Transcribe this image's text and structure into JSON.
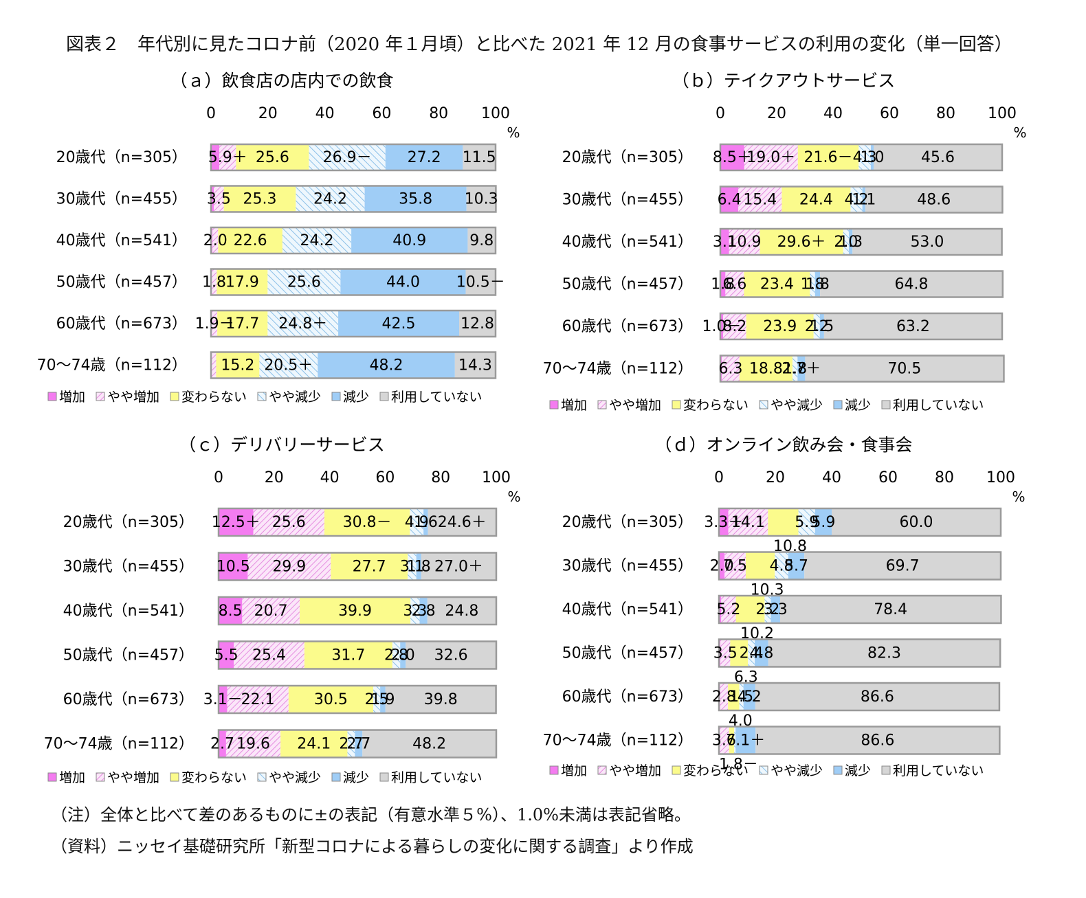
{
  "title": "図表２　年代別に見たコロナ前（2020 年１月頃）と比べた 2021 年 12 月の食事サービスの利用の変化（単一回答）",
  "notes": {
    "note1": "（注）全体と比べて差のあるものに±の表記（有意水準５%）、1.0%未満は表記省略。",
    "note2": "（資料）ニッセイ基礎研究所「新型コロナによる暮らしの変化に関する調査」より作成"
  },
  "colors": {
    "増加": "#f47cf0",
    "やや増加": "#f6c8f2",
    "変わらない": "#fbfb8c",
    "やや減少": "#d8ecfa",
    "減少": "#9fcdf6",
    "利用していない": "#d6d6d6"
  },
  "chart_data": [
    {
      "type": "bar",
      "stacked": true,
      "orientation": "horizontal",
      "title": "（ａ）飲食店の店内での飲食",
      "unit": "%",
      "xlim": [
        0,
        100
      ],
      "ticks": [
        "0",
        "20",
        "40",
        "60",
        "80",
        "100"
      ],
      "categories": [
        "20歳代（n=305）",
        "30歳代（n=455）",
        "40歳代（n=541）",
        "50歳代（n=457）",
        "60歳代（n=673）",
        "70～74歳（n=112）"
      ],
      "series": [
        {
          "name": "増加",
          "values": [
            2.9,
            1.0,
            0.5,
            0.2,
            0.3,
            0.0
          ]
        },
        {
          "name": "やや増加",
          "values": [
            5.9,
            3.5,
            2.0,
            1.8,
            1.9,
            1.8
          ]
        },
        {
          "name": "変わらない",
          "values": [
            25.6,
            25.3,
            22.6,
            17.9,
            17.7,
            15.2
          ]
        },
        {
          "name": "やや減少",
          "values": [
            26.9,
            24.2,
            24.2,
            25.6,
            24.8,
            20.5
          ]
        },
        {
          "name": "減少",
          "values": [
            27.2,
            35.8,
            40.9,
            44.0,
            42.5,
            48.2
          ]
        },
        {
          "name": "利用していない",
          "values": [
            11.5,
            10.3,
            9.8,
            10.5,
            12.8,
            14.3
          ]
        }
      ],
      "labels": [
        [
          "",
          "5.9＋",
          "25.6",
          "26.9－",
          "27.2",
          "11.5"
        ],
        [
          "",
          "3.5",
          "25.3",
          "24.2",
          "35.8",
          "10.3"
        ],
        [
          "",
          "2.0",
          "22.6",
          "24.2",
          "40.9",
          "9.8"
        ],
        [
          "",
          "1.8",
          "17.9",
          "25.6",
          "44.0",
          "10.5－"
        ],
        [
          "",
          "1.9－",
          "17.7",
          "24.8＋",
          "42.5",
          "12.8"
        ],
        [
          "",
          "",
          "15.2",
          "20.5＋",
          "48.2",
          "14.3"
        ]
      ],
      "legend": [
        "増加",
        "やや増加",
        "変わらない",
        "やや減少",
        "減少",
        "利用していない"
      ]
    },
    {
      "type": "bar",
      "stacked": true,
      "orientation": "horizontal",
      "title": "（ｂ）テイクアウトサービス",
      "unit": "%",
      "xlim": [
        0,
        100
      ],
      "ticks": [
        "0",
        "20",
        "40",
        "60",
        "80",
        "100"
      ],
      "categories": [
        "20歳代（n=305）",
        "30歳代（n=455）",
        "40歳代（n=541）",
        "50歳代（n=457）",
        "60歳代（n=673）",
        "70～74歳（n=112）"
      ],
      "series": [
        {
          "name": "増加",
          "values": [
            8.5,
            6.4,
            3.1,
            1.8,
            1.0,
            0.5
          ]
        },
        {
          "name": "やや増加",
          "values": [
            19.0,
            15.4,
            10.9,
            6.6,
            8.2,
            6.3
          ]
        },
        {
          "name": "変わらない",
          "values": [
            21.6,
            24.4,
            29.6,
            23.4,
            23.9,
            18.8
          ]
        },
        {
          "name": "やや減少",
          "values": [
            4.3,
            4.2,
            2.0,
            1.8,
            2.2,
            1.8
          ]
        },
        {
          "name": "減少",
          "values": [
            1.0,
            1.1,
            1.3,
            1.8,
            1.5,
            2.7
          ]
        },
        {
          "name": "利用していない",
          "values": [
            45.6,
            48.6,
            53.0,
            64.8,
            63.2,
            70.5
          ]
        }
      ],
      "labels": [
        [
          "8.5＋",
          "19.0＋",
          "21.6－",
          "4.3",
          "1.0",
          "45.6"
        ],
        [
          "6.4",
          "15.4",
          "24.4",
          "4.2",
          "1.1",
          "48.6"
        ],
        [
          "3.1",
          "10.9",
          "29.6＋",
          "2.0",
          "1.3",
          "53.0"
        ],
        [
          "1.8",
          "6.6",
          "23.4",
          "1.8",
          "1.8",
          "64.8"
        ],
        [
          "1.0－",
          "8.2",
          "23.9",
          "2.2",
          "1.5",
          "63.2"
        ],
        [
          "",
          "6.3",
          "18.8",
          "1.8",
          "2.7＋",
          "70.5"
        ]
      ],
      "legend": [
        "増加",
        "やや増加",
        "変わらない",
        "やや減少",
        "減少",
        "利用していない"
      ]
    },
    {
      "type": "bar",
      "stacked": true,
      "orientation": "horizontal",
      "title": "（ｃ）デリバリーサービス",
      "unit": "%",
      "xlim": [
        0,
        100
      ],
      "ticks": [
        "0",
        "20",
        "40",
        "60",
        "80",
        "100"
      ],
      "categories": [
        "20歳代（n=305）",
        "30歳代（n=455）",
        "40歳代（n=541）",
        "50歳代（n=457）",
        "60歳代（n=673）",
        "70～74歳（n=112）"
      ],
      "series": [
        {
          "name": "増加",
          "values": [
            12.5,
            10.5,
            8.5,
            5.5,
            3.1,
            2.7
          ]
        },
        {
          "name": "やや増加",
          "values": [
            25.6,
            29.9,
            20.7,
            25.4,
            22.1,
            19.6
          ]
        },
        {
          "name": "変わらない",
          "values": [
            30.8,
            27.7,
            39.9,
            31.7,
            30.5,
            24.1
          ]
        },
        {
          "name": "やや減少",
          "values": [
            4.9,
            3.1,
            3.3,
            2.8,
            2.5,
            2.7
          ]
        },
        {
          "name": "減少",
          "values": [
            1.6,
            1.8,
            2.8,
            2.0,
            1.9,
            2.7
          ]
        },
        {
          "name": "利用していない",
          "values": [
            24.6,
            27.0,
            24.8,
            32.6,
            39.8,
            48.2
          ]
        }
      ],
      "labels": [
        [
          "12.5＋",
          "25.6",
          "30.8－",
          "4.9",
          "1.6",
          "24.6＋"
        ],
        [
          "10.5",
          "29.9",
          "27.7",
          "3.1",
          "1.8",
          "27.0＋"
        ],
        [
          "8.5",
          "20.7",
          "39.9",
          "3.3",
          "2.8",
          "24.8"
        ],
        [
          "5.5",
          "25.4",
          "31.7",
          "2.8",
          "2.0",
          "32.6"
        ],
        [
          "3.1－",
          "22.1",
          "30.5",
          "2.5",
          "1.9",
          "39.8"
        ],
        [
          "2.7",
          "19.6",
          "24.1",
          "2.7",
          "2.7",
          "48.2"
        ]
      ],
      "legend": [
        "増加",
        "やや増加",
        "変わらない",
        "やや減少",
        "減少",
        "利用していない"
      ]
    },
    {
      "type": "bar",
      "stacked": true,
      "orientation": "horizontal",
      "title": "（ｄ）オンライン飲み会・食事会",
      "unit": "%",
      "xlim": [
        0,
        100
      ],
      "ticks": [
        "0",
        "20",
        "40",
        "60",
        "80",
        "100"
      ],
      "categories": [
        "20歳代（n=305）",
        "30歳代（n=455）",
        "40歳代（n=541）",
        "50歳代（n=457）",
        "60歳代（n=673）",
        "70～74歳（n=112）"
      ],
      "series": [
        {
          "name": "増加",
          "values": [
            3.3,
            2.0,
            0.8,
            0.5,
            0.4,
            0.0
          ]
        },
        {
          "name": "やや増加",
          "values": [
            14.1,
            7.5,
            5.2,
            3.5,
            2.8,
            3.6
          ]
        },
        {
          "name": "変わらない",
          "values": [
            10.8,
            10.3,
            10.2,
            6.3,
            4.0,
            1.8
          ]
        },
        {
          "name": "やや減少",
          "values": [
            5.9,
            4.8,
            2.2,
            2.4,
            1.5,
            0.5
          ]
        },
        {
          "name": "減少",
          "values": [
            5.9,
            5.7,
            3.3,
            4.8,
            4.2,
            7.1
          ]
        },
        {
          "name": "利用していない",
          "values": [
            60.0,
            69.7,
            78.4,
            82.3,
            86.6,
            86.6
          ]
        }
      ],
      "labels": [
        [
          "3.3＋",
          "14.1",
          "",
          "5.9",
          "5.9",
          "60.0"
        ],
        [
          "2.0",
          "7.5",
          "",
          "4.8",
          "5.7",
          "69.7"
        ],
        [
          "",
          "5.2",
          "",
          "2.2",
          "3.3",
          "78.4"
        ],
        [
          "",
          "3.5",
          "",
          "2.4",
          "4.8",
          "82.3"
        ],
        [
          "",
          "2.8",
          "",
          "1.5",
          "4.2",
          "86.6"
        ],
        [
          "",
          "3.6",
          "",
          "",
          "7.1＋",
          "86.6"
        ]
      ],
      "below_labels": [
        "10.8",
        "10.3",
        "10.2",
        "6.3",
        "4.0",
        "1.8－"
      ],
      "legend": [
        "増加",
        "やや増加",
        "変わらない",
        "やや減少",
        "減少",
        "利用していない"
      ]
    }
  ]
}
